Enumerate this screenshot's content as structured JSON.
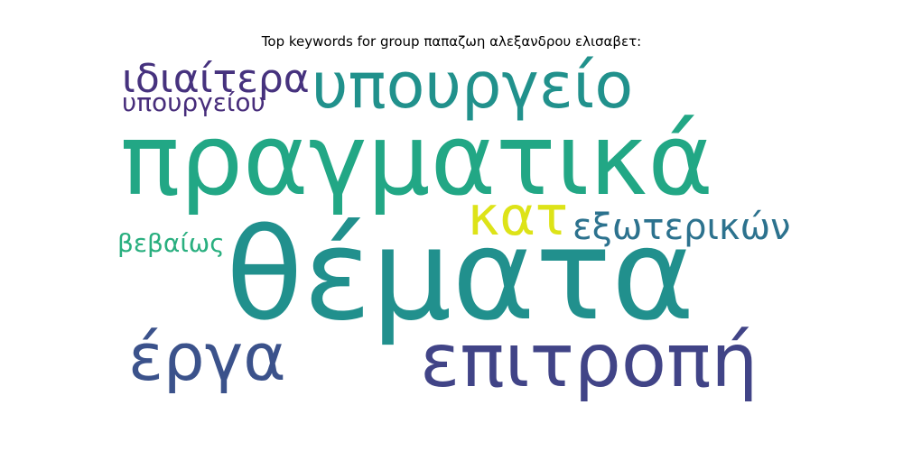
{
  "title": "Top keywords for group παπαζωη αλεξανδρου ελισαβετ:",
  "words": [
    {
      "key": "pragmatika",
      "text": "πραγματικά",
      "color": "#22a785"
    },
    {
      "key": "themata",
      "text": "θέματα",
      "color": "#21908d"
    },
    {
      "key": "ypourgeio",
      "text": "υπουργείο",
      "color": "#21918c"
    },
    {
      "key": "epitropi",
      "text": "επιτροπή",
      "color": "#414487"
    },
    {
      "key": "erga",
      "text": "έργα",
      "color": "#3b528b"
    },
    {
      "key": "kat",
      "text": "κατ",
      "color": "#dde318"
    },
    {
      "key": "exoterikon",
      "text": "εξωτερικών",
      "color": "#2c728e"
    },
    {
      "key": "idiaitera",
      "text": "ιδιαίτερα",
      "color": "#46327e"
    },
    {
      "key": "ypourgeiou",
      "text": "υπουργείου",
      "color": "#472d7b"
    },
    {
      "key": "vevaios",
      "text": "βεβαίως",
      "color": "#29af7f"
    }
  ]
}
